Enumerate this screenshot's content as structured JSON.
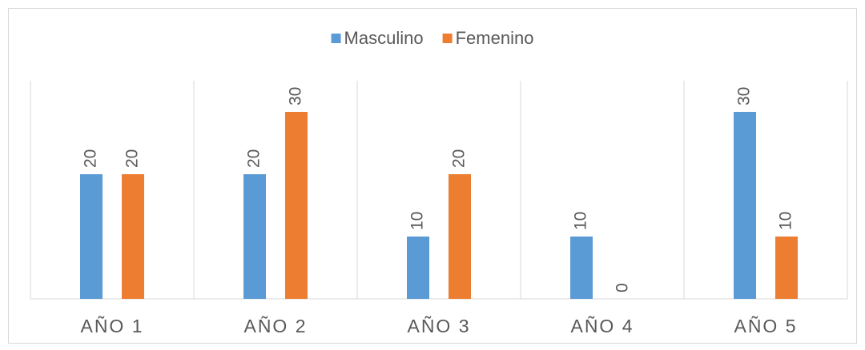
{
  "chart_data": {
    "type": "bar",
    "categories": [
      "AÑO 1",
      "AÑO 2",
      "AÑO 3",
      "AÑO 4",
      "AÑO 5"
    ],
    "series": [
      {
        "name": "Masculino",
        "color": "#5b9bd5",
        "values": [
          20,
          20,
          10,
          10,
          30
        ]
      },
      {
        "name": "Femenino",
        "color": "#ed7d31",
        "values": [
          20,
          30,
          20,
          0,
          10
        ]
      }
    ],
    "ylim": [
      0,
      35
    ],
    "legend": "top"
  }
}
